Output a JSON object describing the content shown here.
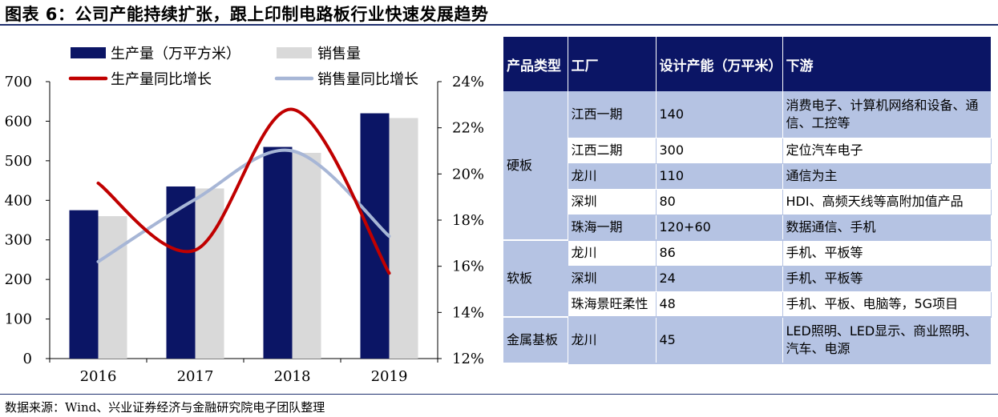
{
  "title": "图表 6：公司产能持续扩张，跟上印制电路板行业快速发展趋势",
  "source": "数据来源：Wind、兴业证券经济与金融研究院电子团队整理",
  "colors": {
    "production_bar": "#0b1565",
    "sales_bar": "#d9d9d9",
    "production_growth_line": "#c00000",
    "sales_growth_line": "#a7b6d6",
    "table_header": "#0b1565",
    "table_band": "#b5c3e3"
  },
  "chart_data": {
    "type": "bar",
    "categories": [
      "2016",
      "2017",
      "2018",
      "2019"
    ],
    "series": [
      {
        "name": "生产量（万平方米）",
        "type": "bar",
        "axis": "left",
        "values": [
          375,
          435,
          535,
          620
        ]
      },
      {
        "name": "销售量",
        "type": "bar",
        "axis": "left",
        "values": [
          360,
          430,
          520,
          608
        ]
      },
      {
        "name": "生产量同比增长",
        "type": "line",
        "axis": "right",
        "values": [
          19.6,
          16.7,
          22.8,
          15.7
        ]
      },
      {
        "name": "销售量同比增长",
        "type": "line",
        "axis": "right",
        "values": [
          16.2,
          18.9,
          21.0,
          17.3
        ]
      }
    ],
    "ylim_left": [
      0,
      700
    ],
    "yticks_left": [
      "0",
      "100",
      "200",
      "300",
      "400",
      "500",
      "600",
      "700"
    ],
    "ylim_right": [
      12,
      24
    ],
    "yticks_right": [
      "12%",
      "14%",
      "16%",
      "18%",
      "20%",
      "22%",
      "24%"
    ],
    "legend": {
      "placement": "top",
      "items": [
        "生产量（万平方米）",
        "销售量",
        "生产量同比增长",
        "销售量同比增长"
      ]
    },
    "grid": false
  },
  "table": {
    "headers": [
      "产品类型",
      "工厂",
      "设计产能（万平米）",
      "下游"
    ],
    "groups": [
      {
        "category": "硬板",
        "rows": [
          {
            "factory": "江西一期",
            "capacity": "140",
            "downstream": "消费电子、计算机网络和设备、通信、工控等"
          },
          {
            "factory": "江西二期",
            "capacity": "300",
            "downstream": "定位汽车电子"
          },
          {
            "factory": "龙川",
            "capacity": "110",
            "downstream": "通信为主"
          },
          {
            "factory": "深圳",
            "capacity": "80",
            "downstream": "HDI、高频天线等高附加值产品"
          },
          {
            "factory": "珠海一期",
            "capacity": "120+60",
            "downstream": "数据通信、手机"
          }
        ]
      },
      {
        "category": "软板",
        "rows": [
          {
            "factory": "龙川",
            "capacity": "86",
            "downstream": "手机、平板等"
          },
          {
            "factory": "深圳",
            "capacity": "24",
            "downstream": "手机、平板等"
          },
          {
            "factory": "珠海景旺柔性",
            "capacity": "48",
            "downstream": "手机、平板、电脑等，5G项目"
          }
        ]
      },
      {
        "category": "金属基板",
        "rows": [
          {
            "factory": "龙川",
            "capacity": "45",
            "downstream": "LED照明、LED显示、商业照明、汽车、电源"
          }
        ]
      }
    ]
  }
}
